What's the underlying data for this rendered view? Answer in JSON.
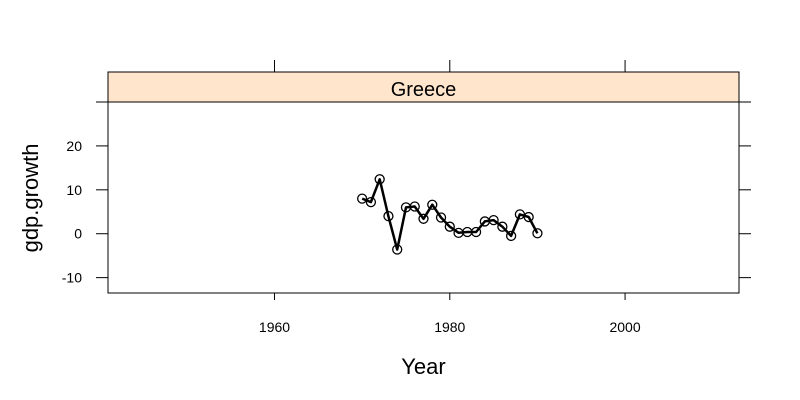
{
  "chart_data": {
    "type": "line",
    "panel_title": "Greece",
    "xlabel": "Year",
    "ylabel": "gdp.growth",
    "xlim": [
      1941,
      2013
    ],
    "ylim": [
      -13.5,
      30
    ],
    "xticks": [
      1960,
      1980,
      2000
    ],
    "yticks": [
      -10,
      0,
      10,
      20
    ],
    "grid": false,
    "colors": {
      "line": "#000000",
      "strip": "#ffe5cc",
      "border": "#000000"
    },
    "series": [
      {
        "x": [
          1970,
          1971,
          1972,
          1973,
          1974,
          1975,
          1976,
          1977,
          1978,
          1979,
          1980,
          1981,
          1982,
          1983,
          1984,
          1985,
          1986,
          1987,
          1988,
          1989,
          1990
        ],
        "y": [
          8.0,
          7.2,
          12.4,
          4.0,
          -3.6,
          6.0,
          6.2,
          3.4,
          6.6,
          3.7,
          1.6,
          0.2,
          0.4,
          0.4,
          2.8,
          3.1,
          1.6,
          -0.5,
          4.4,
          3.8,
          0.1
        ]
      }
    ]
  }
}
